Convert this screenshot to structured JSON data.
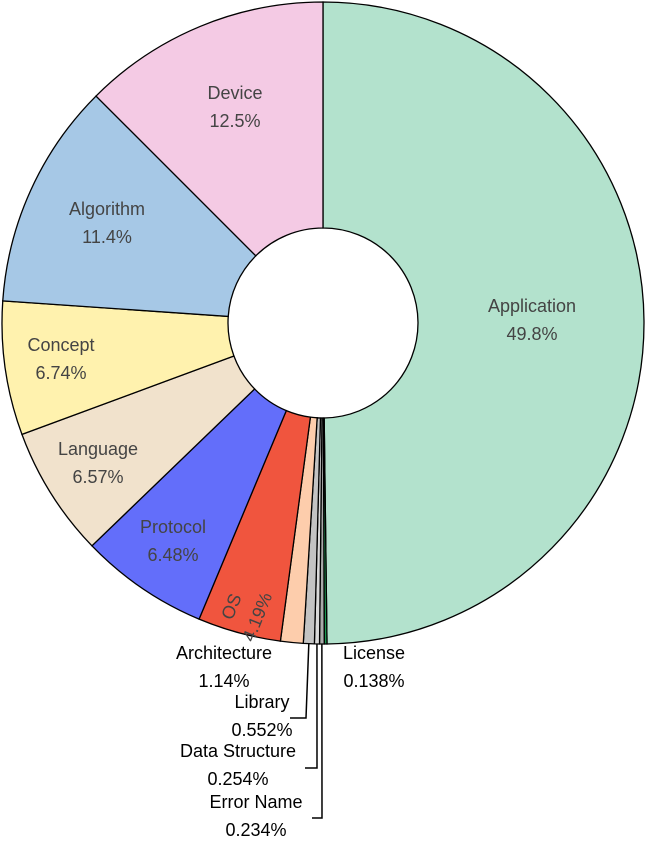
{
  "chart_data": {
    "type": "pie",
    "variant": "donut",
    "title": "",
    "start_angle_deg": 0,
    "direction": "clockwise",
    "series": [
      {
        "category": "Application",
        "value": 49.8,
        "label": "49.8%",
        "color": "#b3e2cd",
        "text_color": "#444444"
      },
      {
        "category": "License",
        "value": 0.138,
        "label": "0.138%",
        "color": "#1a9850",
        "text_color": "#000000"
      },
      {
        "category": "Error Name",
        "value": 0.234,
        "label": "0.234%",
        "color": "#a9a9a9",
        "text_color": "#000000"
      },
      {
        "category": "Data Structure",
        "value": 0.254,
        "label": "0.254%",
        "color": "#d9d9d9",
        "text_color": "#000000"
      },
      {
        "category": "Library",
        "value": 0.552,
        "label": "0.552%",
        "color": "#c3c3c3",
        "text_color": "#000000"
      },
      {
        "category": "Architecture",
        "value": 1.14,
        "label": "1.14%",
        "color": "#fdcdac",
        "text_color": "#000000"
      },
      {
        "category": "OS",
        "value": 4.19,
        "label": "4.19%",
        "color": "#f0553e",
        "text_color": "#444444"
      },
      {
        "category": "Protocol",
        "value": 6.48,
        "label": "6.48%",
        "color": "#636efa",
        "text_color": "#ffffff"
      },
      {
        "category": "Language",
        "value": 6.57,
        "label": "6.57%",
        "color": "#f1e2cc",
        "text_color": "#444444"
      },
      {
        "category": "Concept",
        "value": 6.74,
        "label": "6.74%",
        "color": "#fff2ae",
        "text_color": "#444444"
      },
      {
        "category": "Algorithm",
        "value": 11.4,
        "label": "11.4%",
        "color": "#a6c8e6",
        "text_color": "#444444"
      },
      {
        "category": "Device",
        "value": 12.5,
        "label": "12.5%",
        "color": "#f4cae4",
        "text_color": "#444444"
      }
    ]
  }
}
